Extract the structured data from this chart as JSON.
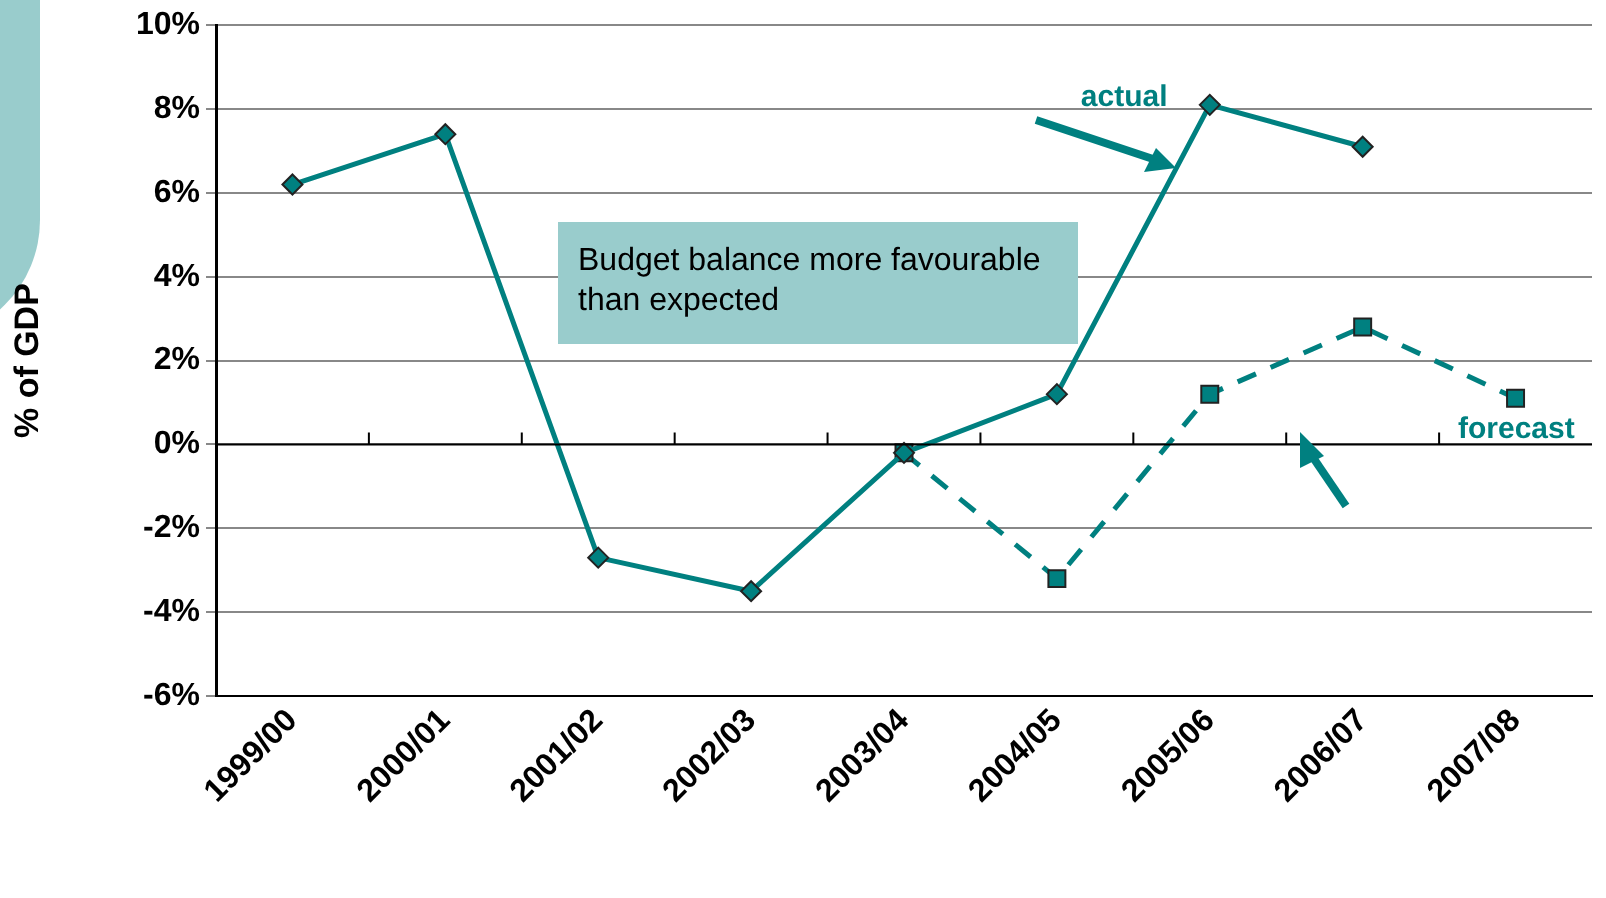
{
  "chart_data": {
    "type": "line",
    "ylabel": "% of GDP",
    "categories": [
      "1999/00",
      "2000/01",
      "2001/02",
      "2002/03",
      "2003/04",
      "2004/05",
      "2005/06",
      "2006/07",
      "2007/08"
    ],
    "series": [
      {
        "name": "actual",
        "color": "#008080",
        "marker": "diamond",
        "line_style": "solid",
        "values": [
          6.2,
          7.4,
          -2.7,
          -3.5,
          -0.2,
          1.2,
          8.1,
          7.1,
          null
        ]
      },
      {
        "name": "forecast",
        "color": "#008080",
        "marker": "square",
        "line_style": "dashed",
        "values": [
          null,
          null,
          null,
          null,
          -0.2,
          -3.2,
          1.2,
          2.8,
          1.1
        ]
      }
    ],
    "ylim": [
      -6,
      10
    ],
    "yticks": [
      {
        "value": -6,
        "label": "-6%"
      },
      {
        "value": -4,
        "label": "-4%"
      },
      {
        "value": -2,
        "label": "-2%"
      },
      {
        "value": 0,
        "label": "0%"
      },
      {
        "value": 2,
        "label": "2%"
      },
      {
        "value": 4,
        "label": "4%"
      },
      {
        "value": 6,
        "label": "6%"
      },
      {
        "value": 8,
        "label": "8%"
      },
      {
        "value": 10,
        "label": "10%"
      }
    ],
    "grid": "y",
    "legend": false,
    "annotations": [
      "Budget balance more favourable than expected"
    ]
  }
}
